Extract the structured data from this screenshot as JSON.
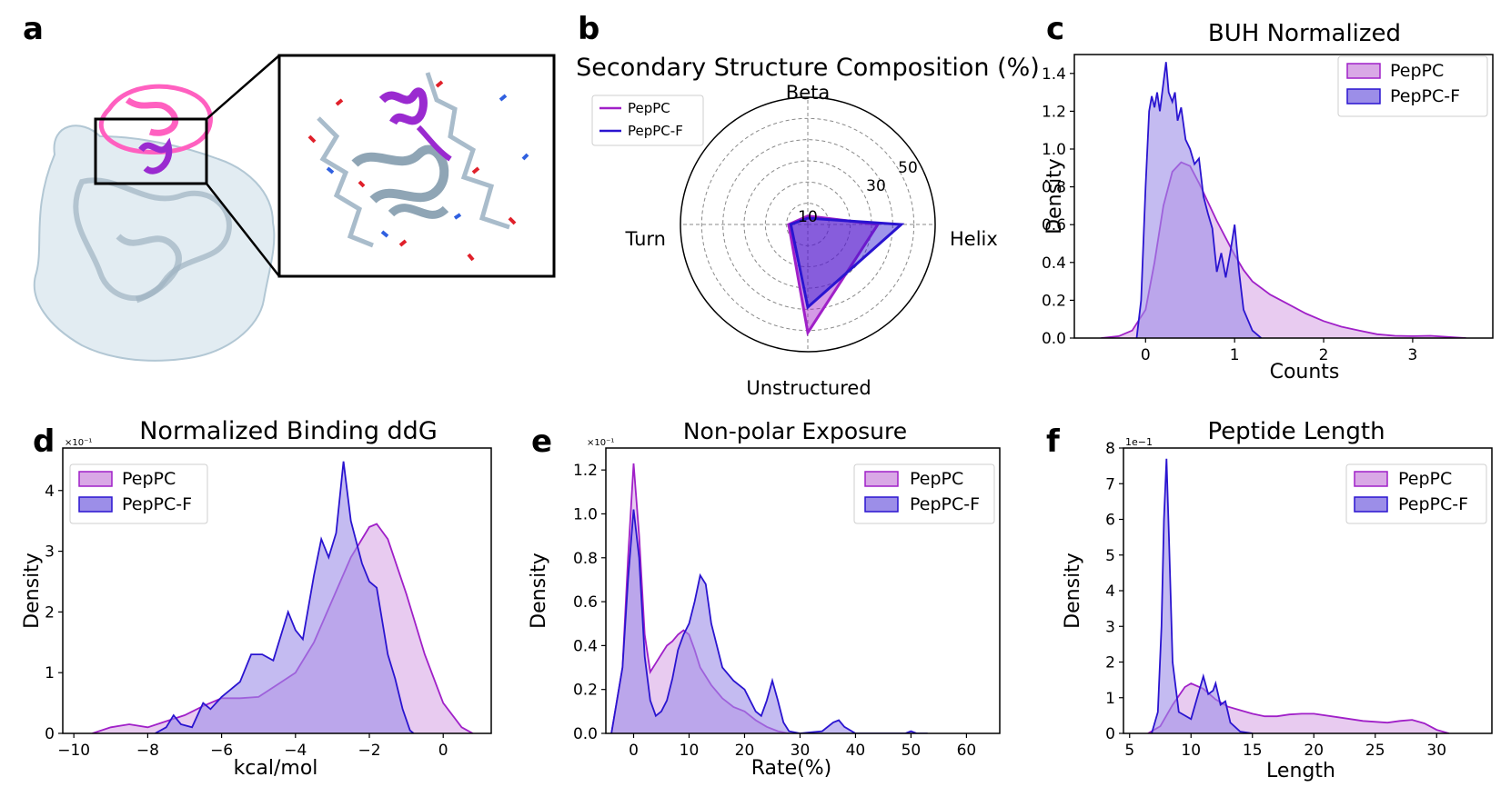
{
  "figure": {
    "protein_panel": {
      "label": "a"
    },
    "panel_labels": [
      "a",
      "b",
      "c",
      "d",
      "e",
      "f"
    ]
  },
  "colors": {
    "pepPC": "#a020c8",
    "pepPC_fill": "#d9a8e6",
    "pepPC_F": "#2a14d0",
    "pepPC_F_fill": "#9c8ee8",
    "protein_pink": "#ff60c0",
    "protein_purple": "#9a2ad0",
    "protein_grey": "#a9bccb"
  },
  "chart_data": [
    {
      "panel": "b",
      "type": "radar",
      "title": "Secondary Structure Composition (%)",
      "axes": [
        "Beta",
        "Helix",
        "Unstructured",
        "Turn"
      ],
      "rticks": [
        "10",
        "30",
        "50"
      ],
      "rticks_values": [
        10,
        30,
        50
      ],
      "rmax": 60,
      "legend": [
        "PepPC",
        "PepPC-F"
      ],
      "legend_position": "top-left",
      "series": [
        {
          "name": "PepPC",
          "values": [
            4,
            33,
            51,
            9
          ]
        },
        {
          "name": "PepPC-F",
          "values": [
            3,
            44,
            39,
            8
          ]
        }
      ]
    },
    {
      "panel": "c",
      "type": "area",
      "title": "BUH Normalized",
      "xlabel": "Counts",
      "ylabel": "Density",
      "xlim": [
        -0.8,
        3.9
      ],
      "ylim": [
        0,
        1.5
      ],
      "xticks": [
        "0",
        "1",
        "2",
        "3"
      ],
      "xticks_values": [
        0,
        1,
        2,
        3
      ],
      "yticks": [
        "0.0",
        "0.2",
        "0.4",
        "0.6",
        "0.8",
        "1.0",
        "1.2",
        "1.4"
      ],
      "yticks_values": [
        0,
        0.2,
        0.4,
        0.6,
        0.8,
        1.0,
        1.2,
        1.4
      ],
      "legend": [
        "PepPC",
        "PepPC-F"
      ],
      "legend_position": "top-right",
      "series": [
        {
          "name": "PepPC",
          "points": [
            [
              -0.5,
              0
            ],
            [
              -0.3,
              0.01
            ],
            [
              -0.15,
              0.04
            ],
            [
              0,
              0.15
            ],
            [
              0.1,
              0.4
            ],
            [
              0.2,
              0.7
            ],
            [
              0.3,
              0.88
            ],
            [
              0.4,
              0.93
            ],
            [
              0.5,
              0.91
            ],
            [
              0.6,
              0.82
            ],
            [
              0.7,
              0.72
            ],
            [
              0.8,
              0.62
            ],
            [
              0.9,
              0.53
            ],
            [
              1.0,
              0.44
            ],
            [
              1.1,
              0.36
            ],
            [
              1.2,
              0.3
            ],
            [
              1.4,
              0.23
            ],
            [
              1.6,
              0.18
            ],
            [
              1.8,
              0.13
            ],
            [
              2.0,
              0.09
            ],
            [
              2.2,
              0.06
            ],
            [
              2.4,
              0.04
            ],
            [
              2.6,
              0.02
            ],
            [
              2.8,
              0.012
            ],
            [
              3.0,
              0.01
            ],
            [
              3.2,
              0.012
            ],
            [
              3.4,
              0.006
            ],
            [
              3.6,
              0
            ]
          ]
        },
        {
          "name": "PepPC-F",
          "points": [
            [
              -0.1,
              0
            ],
            [
              -0.05,
              0.2
            ],
            [
              0,
              0.8
            ],
            [
              0.04,
              1.2
            ],
            [
              0.07,
              1.28
            ],
            [
              0.1,
              1.22
            ],
            [
              0.13,
              1.3
            ],
            [
              0.16,
              1.2
            ],
            [
              0.2,
              1.35
            ],
            [
              0.23,
              1.46
            ],
            [
              0.26,
              1.3
            ],
            [
              0.3,
              1.25
            ],
            [
              0.33,
              1.3
            ],
            [
              0.36,
              1.15
            ],
            [
              0.4,
              1.22
            ],
            [
              0.45,
              1.05
            ],
            [
              0.5,
              1.0
            ],
            [
              0.55,
              0.92
            ],
            [
              0.6,
              0.95
            ],
            [
              0.65,
              0.75
            ],
            [
              0.7,
              0.66
            ],
            [
              0.75,
              0.58
            ],
            [
              0.8,
              0.35
            ],
            [
              0.85,
              0.45
            ],
            [
              0.9,
              0.32
            ],
            [
              0.95,
              0.45
            ],
            [
              1.0,
              0.6
            ],
            [
              1.05,
              0.35
            ],
            [
              1.1,
              0.15
            ],
            [
              1.2,
              0.04
            ],
            [
              1.3,
              0
            ]
          ]
        }
      ]
    },
    {
      "panel": "d",
      "type": "area",
      "title": "Normalized Binding ddG",
      "xlabel": "kcal/mol",
      "ylabel": "Density",
      "yscale_label": "×10⁻¹",
      "xlim": [
        -10.3,
        1.3
      ],
      "ylim": [
        0,
        4.7
      ],
      "xticks": [
        "−10",
        "−8",
        "−6",
        "−4",
        "−2",
        "0"
      ],
      "xticks_values": [
        -10,
        -8,
        -6,
        -4,
        -2,
        0
      ],
      "yticks": [
        "0",
        "1",
        "2",
        "3",
        "4"
      ],
      "yticks_values": [
        0,
        1,
        2,
        3,
        4
      ],
      "legend": [
        "PepPC",
        "PepPC-F"
      ],
      "legend_position": "top-left",
      "series": [
        {
          "name": "PepPC",
          "points": [
            [
              -9.5,
              0
            ],
            [
              -9,
              0.1
            ],
            [
              -8.5,
              0.15
            ],
            [
              -8,
              0.1
            ],
            [
              -7.5,
              0.2
            ],
            [
              -7,
              0.3
            ],
            [
              -6.5,
              0.45
            ],
            [
              -6,
              0.58
            ],
            [
              -5.5,
              0.58
            ],
            [
              -5,
              0.6
            ],
            [
              -4.5,
              0.8
            ],
            [
              -4,
              1.0
            ],
            [
              -3.5,
              1.5
            ],
            [
              -3,
              2.2
            ],
            [
              -2.5,
              2.9
            ],
            [
              -2,
              3.4
            ],
            [
              -1.8,
              3.45
            ],
            [
              -1.5,
              3.2
            ],
            [
              -1,
              2.3
            ],
            [
              -0.5,
              1.3
            ],
            [
              0,
              0.5
            ],
            [
              0.5,
              0.1
            ],
            [
              0.8,
              0
            ]
          ]
        },
        {
          "name": "PepPC-F",
          "points": [
            [
              -7.8,
              0
            ],
            [
              -7.5,
              0.1
            ],
            [
              -7.3,
              0.3
            ],
            [
              -7.1,
              0.15
            ],
            [
              -6.8,
              0.1
            ],
            [
              -6.5,
              0.5
            ],
            [
              -6.3,
              0.4
            ],
            [
              -6,
              0.6
            ],
            [
              -5.5,
              0.85
            ],
            [
              -5.2,
              1.3
            ],
            [
              -4.9,
              1.3
            ],
            [
              -4.6,
              1.2
            ],
            [
              -4.2,
              2.0
            ],
            [
              -4.0,
              1.7
            ],
            [
              -3.8,
              1.55
            ],
            [
              -3.5,
              2.6
            ],
            [
              -3.3,
              3.2
            ],
            [
              -3.1,
              2.9
            ],
            [
              -2.9,
              3.3
            ],
            [
              -2.7,
              4.48
            ],
            [
              -2.5,
              3.5
            ],
            [
              -2.2,
              2.8
            ],
            [
              -2,
              2.5
            ],
            [
              -1.8,
              2.4
            ],
            [
              -1.5,
              1.3
            ],
            [
              -1.3,
              0.9
            ],
            [
              -1.1,
              0.4
            ],
            [
              -0.9,
              0.05
            ],
            [
              -0.8,
              0
            ]
          ]
        }
      ]
    },
    {
      "panel": "e",
      "type": "area",
      "title": "Non-polar Exposure",
      "xlabel": "Rate(%)",
      "ylabel": "Density",
      "yscale_label": "×10⁻¹",
      "xlim": [
        -5,
        66
      ],
      "ylim": [
        0,
        1.3
      ],
      "xticks": [
        "0",
        "10",
        "20",
        "30",
        "40",
        "50",
        "60"
      ],
      "xticks_values": [
        0,
        10,
        20,
        30,
        40,
        50,
        60
      ],
      "yticks": [
        "0.0",
        "0.2",
        "0.4",
        "0.6",
        "0.8",
        "1.0",
        "1.2"
      ],
      "yticks_values": [
        0,
        0.2,
        0.4,
        0.6,
        0.8,
        1.0,
        1.2
      ],
      "legend": [
        "PepPC",
        "PepPC-F"
      ],
      "legend_position": "top-right",
      "series": [
        {
          "name": "PepPC",
          "points": [
            [
              -4,
              0
            ],
            [
              -2,
              0.3
            ],
            [
              -1,
              0.8
            ],
            [
              0,
              1.23
            ],
            [
              1,
              0.9
            ],
            [
              2,
              0.45
            ],
            [
              3,
              0.28
            ],
            [
              4,
              0.32
            ],
            [
              5,
              0.36
            ],
            [
              6,
              0.4
            ],
            [
              7,
              0.42
            ],
            [
              8,
              0.45
            ],
            [
              9,
              0.47
            ],
            [
              10,
              0.45
            ],
            [
              11,
              0.38
            ],
            [
              12,
              0.3
            ],
            [
              14,
              0.22
            ],
            [
              16,
              0.16
            ],
            [
              18,
              0.12
            ],
            [
              20,
              0.1
            ],
            [
              22,
              0.06
            ],
            [
              24,
              0.03
            ],
            [
              26,
              0.01
            ],
            [
              28,
              0
            ]
          ]
        },
        {
          "name": "PepPC-F",
          "points": [
            [
              -4,
              0
            ],
            [
              -2,
              0.3
            ],
            [
              -1,
              0.7
            ],
            [
              0,
              1.02
            ],
            [
              1,
              0.8
            ],
            [
              2,
              0.35
            ],
            [
              3,
              0.15
            ],
            [
              4,
              0.08
            ],
            [
              5,
              0.1
            ],
            [
              6,
              0.15
            ],
            [
              7,
              0.25
            ],
            [
              8,
              0.38
            ],
            [
              9,
              0.45
            ],
            [
              10,
              0.5
            ],
            [
              11,
              0.6
            ],
            [
              12,
              0.72
            ],
            [
              13,
              0.68
            ],
            [
              14,
              0.5
            ],
            [
              16,
              0.3
            ],
            [
              18,
              0.24
            ],
            [
              20,
              0.2
            ],
            [
              22,
              0.1
            ],
            [
              23,
              0.08
            ],
            [
              24,
              0.15
            ],
            [
              25,
              0.24
            ],
            [
              26,
              0.15
            ],
            [
              27,
              0.05
            ],
            [
              28,
              0.01
            ],
            [
              30,
              0
            ],
            [
              34,
              0.01
            ],
            [
              36,
              0.05
            ],
            [
              37,
              0.06
            ],
            [
              38,
              0.03
            ],
            [
              40,
              0
            ],
            [
              49,
              0
            ],
            [
              50,
              0.01
            ],
            [
              51,
              0
            ],
            [
              53,
              0
            ]
          ]
        }
      ]
    },
    {
      "panel": "f",
      "type": "area",
      "title": "Peptide Length",
      "xlabel": "Length",
      "ylabel": "Density",
      "yscale_label": "1e−1",
      "xlim": [
        4.5,
        34.5
      ],
      "ylim": [
        0,
        8
      ],
      "xticks": [
        "5",
        "10",
        "15",
        "20",
        "25",
        "30"
      ],
      "xticks_values": [
        5,
        10,
        15,
        20,
        25,
        30
      ],
      "yticks": [
        "0",
        "1",
        "2",
        "3",
        "4",
        "5",
        "6",
        "7",
        "8"
      ],
      "yticks_values": [
        0,
        1,
        2,
        3,
        4,
        5,
        6,
        7,
        8
      ],
      "legend": [
        "PepPC",
        "PepPC-F"
      ],
      "legend_position": "top-right",
      "series": [
        {
          "name": "PepPC",
          "points": [
            [
              6.5,
              0
            ],
            [
              7.5,
              0.2
            ],
            [
              8.5,
              0.8
            ],
            [
              9.5,
              1.3
            ],
            [
              10,
              1.4
            ],
            [
              11,
              1.25
            ],
            [
              12,
              0.95
            ],
            [
              13,
              0.75
            ],
            [
              14,
              0.65
            ],
            [
              15,
              0.55
            ],
            [
              16,
              0.48
            ],
            [
              17,
              0.48
            ],
            [
              18,
              0.53
            ],
            [
              19,
              0.55
            ],
            [
              20,
              0.55
            ],
            [
              22,
              0.45
            ],
            [
              24,
              0.35
            ],
            [
              26,
              0.3
            ],
            [
              27,
              0.35
            ],
            [
              28,
              0.38
            ],
            [
              29,
              0.28
            ],
            [
              30,
              0.1
            ],
            [
              31,
              0
            ]
          ]
        },
        {
          "name": "PepPC-F",
          "points": [
            [
              6.8,
              0
            ],
            [
              7.3,
              0.6
            ],
            [
              7.6,
              3.0
            ],
            [
              7.8,
              6.0
            ],
            [
              8,
              7.7
            ],
            [
              8.2,
              5.5
            ],
            [
              8.5,
              2.0
            ],
            [
              9,
              0.6
            ],
            [
              10,
              0.4
            ],
            [
              10.5,
              1.0
            ],
            [
              11,
              1.6
            ],
            [
              11.4,
              1.1
            ],
            [
              11.8,
              1.2
            ],
            [
              12,
              1.4
            ],
            [
              12.4,
              0.8
            ],
            [
              12.8,
              0.9
            ],
            [
              13.2,
              0.3
            ],
            [
              14,
              0.05
            ],
            [
              15,
              0
            ]
          ]
        }
      ]
    }
  ]
}
